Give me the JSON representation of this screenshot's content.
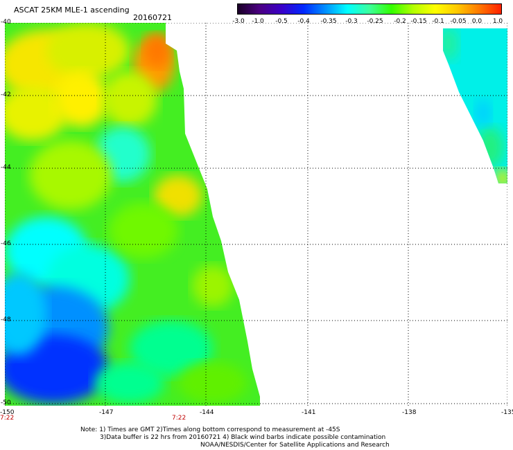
{
  "header": {
    "title": "ASCAT 25KM MLE-1 ascending",
    "date": "20160721"
  },
  "colorbar": {
    "labels": [
      "-3.0",
      "-1.0",
      "-0.5",
      "-0.4",
      "-0.35",
      "-0.3",
      "-0.25",
      "-0.2",
      "-0.15",
      "-0.1",
      "-0.05",
      "0.0",
      "1.0"
    ],
    "colors": [
      "#1a0026",
      "#4b0082",
      "#3a00c8",
      "#0028ff",
      "#0090ff",
      "#00ffff",
      "#3cff9c",
      "#33ff00",
      "#b4ff00",
      "#ffff00",
      "#ffc800",
      "#ff7800",
      "#ff2000"
    ]
  },
  "axes": {
    "x_ticks": [
      "-150",
      "-147",
      "-144",
      "-141",
      "-138",
      "-135"
    ],
    "y_ticks": [
      "-40",
      "-42",
      "-44",
      "-46",
      "-48",
      "-50"
    ],
    "time_labels": [
      "7:22",
      "7:22"
    ]
  },
  "map_data": {
    "lon_range": [
      -150,
      -135
    ],
    "lat_range": [
      -50,
      -40
    ],
    "grid": "dotted",
    "swaths": [
      "western swath with yellow and orange values in the north, green mid values, blue values in the southwest",
      "eastern edge swath with cyan and blue values"
    ]
  },
  "notes": {
    "line1": "Note: 1) Times are GMT 2)Times along bottom correspond to measurement at -45S",
    "line2": "3)Data buffer is 22 hrs from 20160721 4) Black wind barbs indicate possible contamination",
    "line3": "NOAA/NESDIS/Center for Satellite Applications and Research"
  }
}
